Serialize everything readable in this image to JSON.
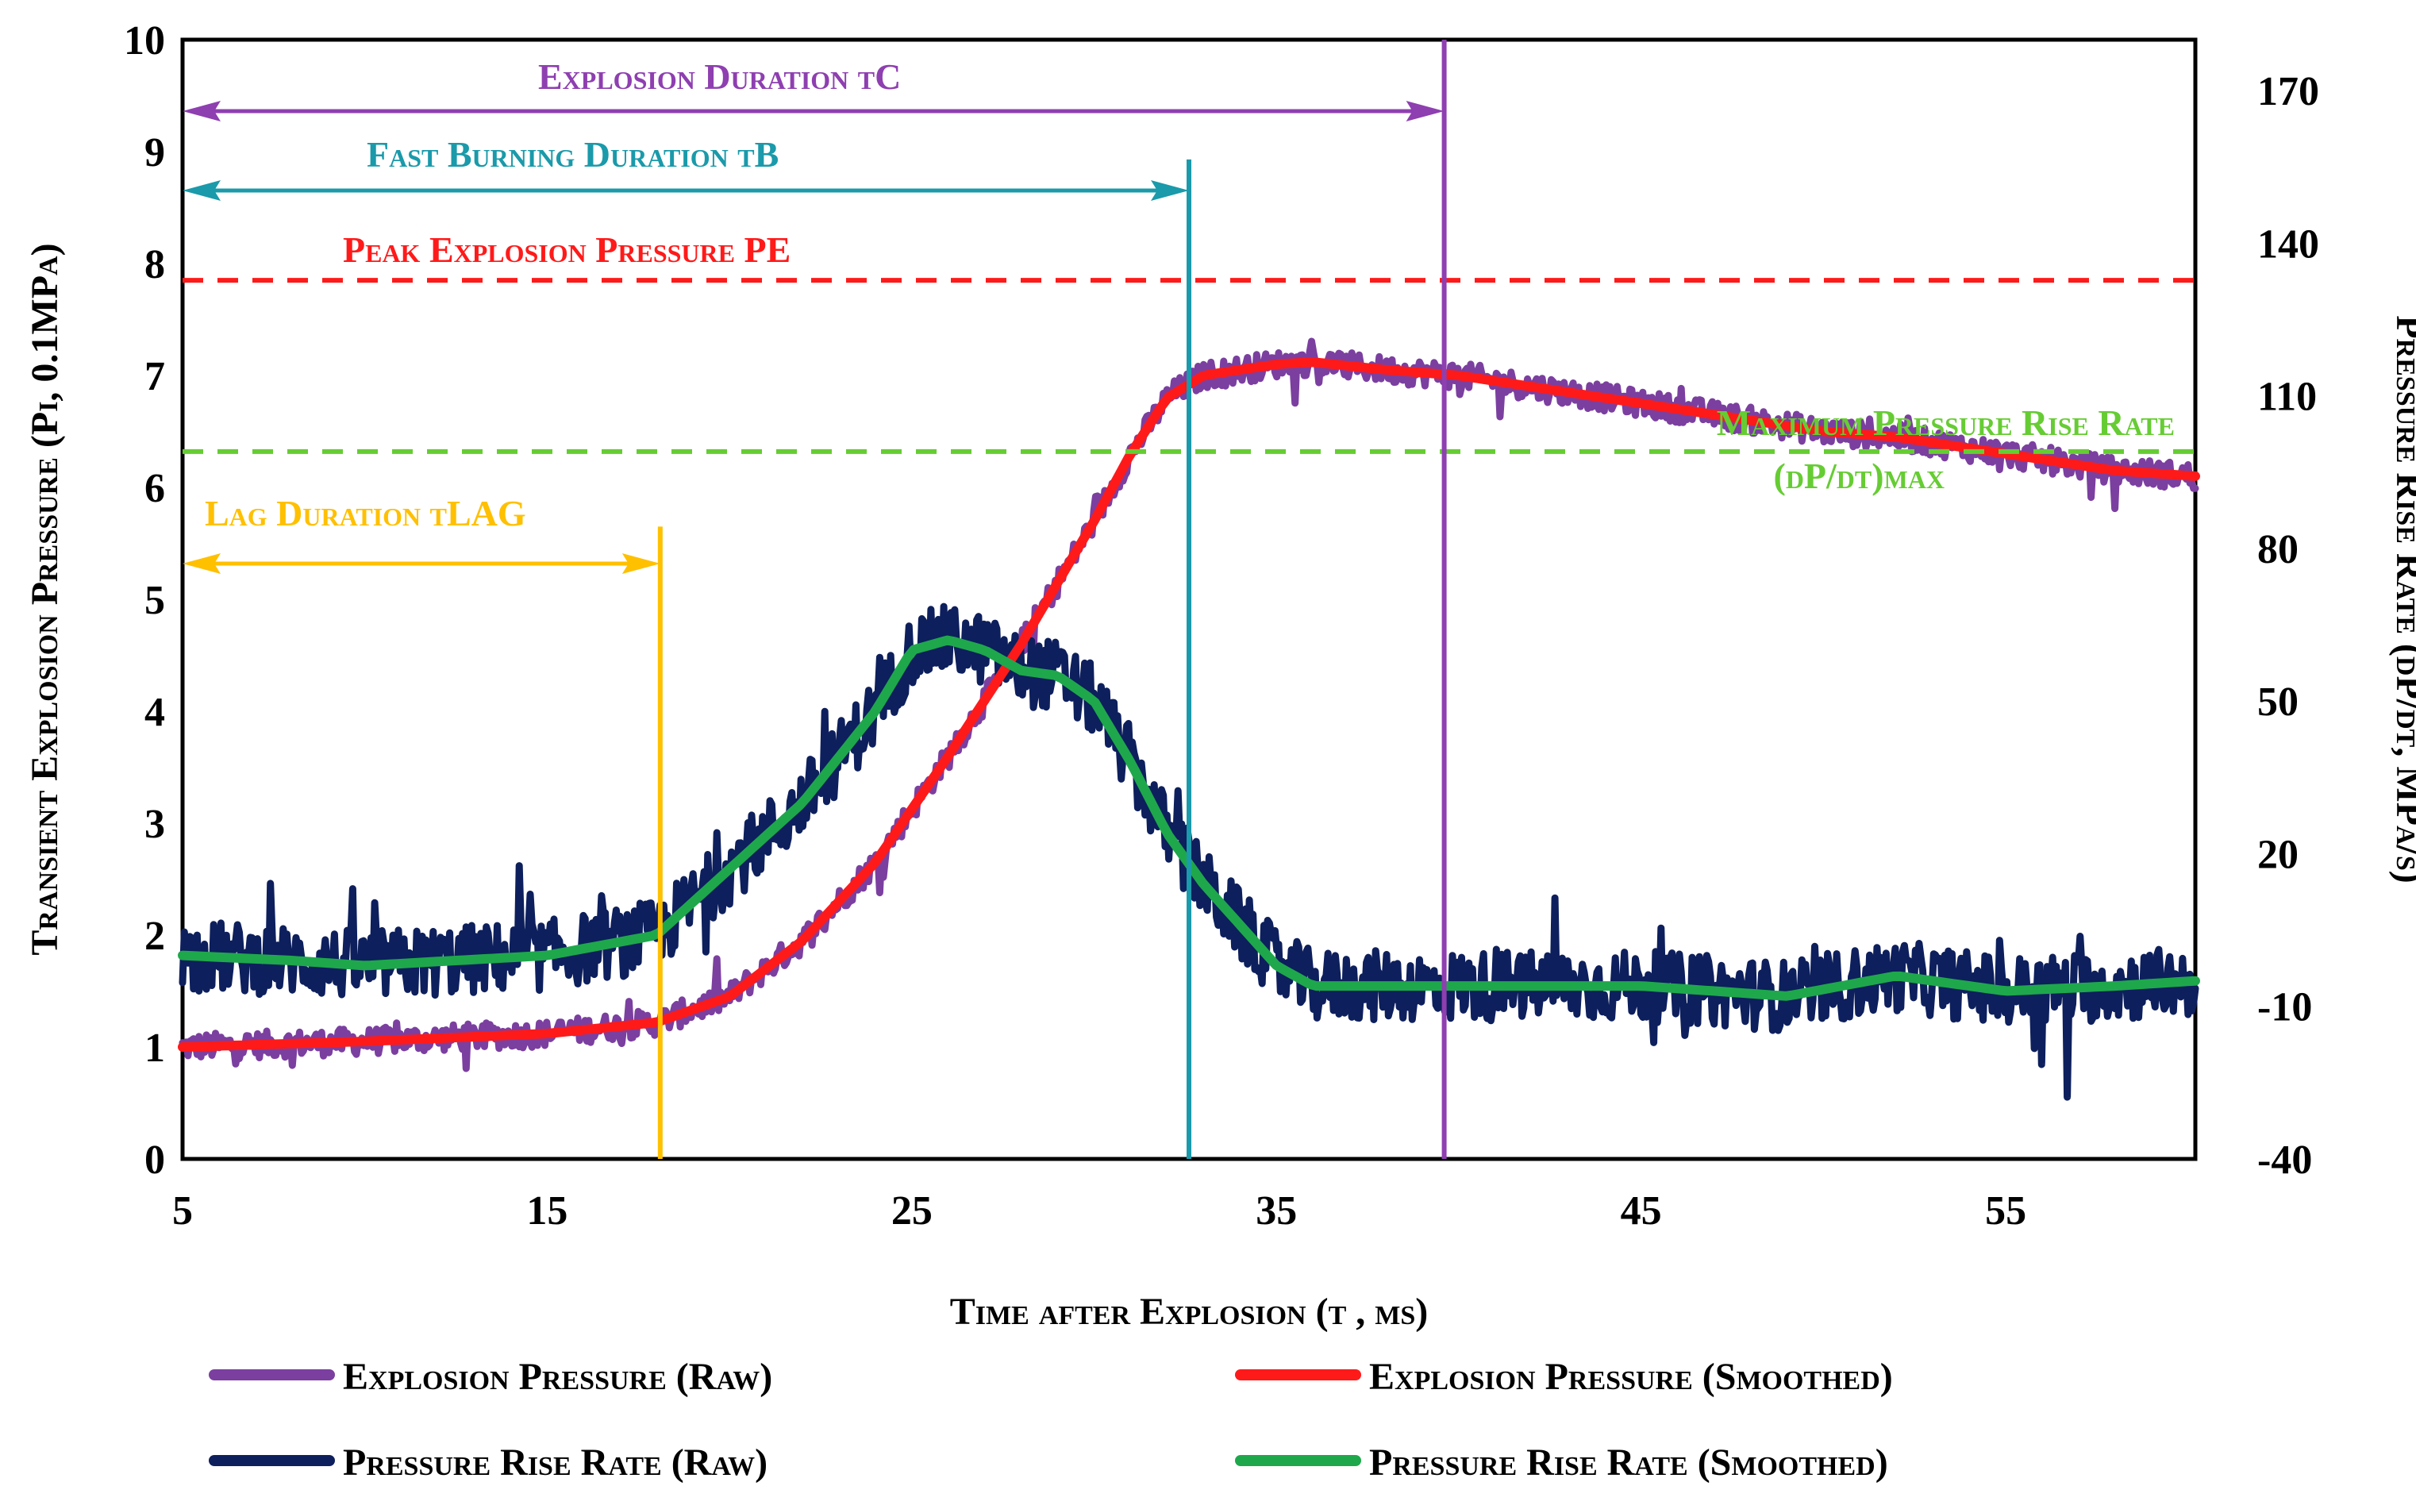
{
  "chart_data": {
    "type": "line",
    "title": "",
    "xlabel": "Time after Explosion (t , ms)",
    "ylabel": "Transient Explosion Pressure (Pi, 0.1MPa)",
    "y2label": "Pressure Rise Rate (dP/dt,  MPa/s)",
    "xlim": [
      5,
      60.2
    ],
    "ylim": [
      0,
      10
    ],
    "y2lim": [
      -40,
      180
    ],
    "x_ticks": [
      5,
      15,
      25,
      35,
      45,
      55
    ],
    "y_ticks": [
      0,
      1,
      2,
      3,
      4,
      5,
      6,
      7,
      8,
      9,
      10
    ],
    "y2_ticks": [
      -40,
      -10,
      20,
      50,
      80,
      110,
      140,
      170
    ],
    "legend_position": "bottom",
    "series": [
      {
        "name": "Explosion Pressure (Raw)",
        "axis": "left",
        "color": "#7b3fa0",
        "noisy": true,
        "noise_amp": 0.12,
        "x": [
          5,
          10,
          15,
          18,
          20,
          22,
          24,
          26,
          28,
          30,
          31,
          32,
          33,
          35,
          36,
          38,
          40,
          42,
          45,
          48,
          50,
          52,
          55,
          58,
          60.2
        ],
        "y": [
          1.0,
          1.05,
          1.12,
          1.22,
          1.45,
          1.95,
          2.65,
          3.6,
          4.6,
          5.7,
          6.3,
          6.8,
          7.0,
          7.1,
          7.12,
          7.05,
          7.0,
          6.9,
          6.75,
          6.6,
          6.5,
          6.45,
          6.3,
          6.15,
          6.1
        ]
      },
      {
        "name": "Explosion Pressure (Smoothed)",
        "axis": "left",
        "color": "#ff1a1a",
        "noisy": false,
        "x": [
          5,
          10,
          15,
          18,
          20,
          22,
          24,
          26,
          28,
          30,
          31,
          32,
          33,
          35,
          36,
          38,
          40,
          42,
          45,
          48,
          50,
          52,
          55,
          58,
          60.2
        ],
        "y": [
          1.0,
          1.05,
          1.12,
          1.22,
          1.45,
          1.95,
          2.65,
          3.6,
          4.6,
          5.7,
          6.3,
          6.8,
          7.0,
          7.1,
          7.12,
          7.05,
          7.0,
          6.9,
          6.75,
          6.6,
          6.5,
          6.45,
          6.3,
          6.15,
          6.1
        ]
      },
      {
        "name": "Pressure Rise Rate (Raw)",
        "axis": "right",
        "color": "#0d1f5c",
        "noisy": true,
        "noise_amp": 7,
        "x": [
          5,
          8,
          10,
          15,
          18,
          20,
          22,
          24,
          25,
          26,
          27,
          28,
          29,
          30,
          31,
          32,
          33,
          34,
          35,
          36,
          38,
          40,
          45,
          49,
          52,
          55,
          58,
          60.2
        ],
        "y": [
          0,
          -1,
          -2,
          0,
          4,
          17,
          30,
          48,
          60,
          62,
          60,
          56,
          55,
          50,
          38,
          24,
          14,
          6,
          -2,
          -6,
          -6,
          -6,
          -6,
          -8,
          -4,
          -7,
          -6,
          -5
        ]
      },
      {
        "name": "Pressure Rise Rate (Smoothed)",
        "axis": "right",
        "color": "#1ea84b",
        "noisy": false,
        "x": [
          5,
          8,
          10,
          15,
          18,
          20,
          22,
          24,
          25,
          26,
          27,
          28,
          29,
          30,
          31,
          32,
          33,
          34,
          35,
          36,
          38,
          40,
          45,
          49,
          52,
          55,
          58,
          60.2
        ],
        "y": [
          0,
          -1,
          -2,
          0,
          4,
          17,
          30,
          48,
          60,
          62,
          60,
          56,
          55,
          50,
          38,
          24,
          14,
          6,
          -2,
          -6,
          -6,
          -6,
          -6,
          -8,
          -4,
          -7,
          -6,
          -5
        ]
      }
    ],
    "vertical_lines": [
      {
        "name": "lag",
        "x": 18.1,
        "color": "#ffc000"
      },
      {
        "name": "fast-burn",
        "x": 32.6,
        "color": "#1a9aaa"
      },
      {
        "name": "explosion-duration",
        "x": 39.6,
        "color": "#8e3fb0"
      }
    ],
    "horizontal_lines": [
      {
        "name": "peak-pressure",
        "y": 7.85,
        "axis": "left",
        "color": "#ff1a1a"
      },
      {
        "name": "max-rise-rate",
        "y": 6.32,
        "axis": "left",
        "color": "#66cc33"
      }
    ],
    "annotations": {
      "explosion_duration": {
        "text": "Explosion Duration tC",
        "color": "#8e3fb0"
      },
      "fast_burning": {
        "text": "Fast Burning Duration tB",
        "color": "#1a9aaa"
      },
      "peak_pressure": {
        "text": "Peak Explosion Pressure PE",
        "color": "#ff1a1a"
      },
      "max_rise_rate_1": {
        "text": "Maximum Pressure Rise Rate",
        "color": "#66cc33"
      },
      "max_rise_rate_2": {
        "text": "(dP/dt)max",
        "color": "#66cc33"
      },
      "lag_duration": {
        "text": "Lag Duration tLAG",
        "color": "#ffc000"
      }
    },
    "legend": [
      {
        "label": "Explosion Pressure (Raw)",
        "color": "#7b3fa0"
      },
      {
        "label": "Explosion Pressure (Smoothed)",
        "color": "#ff1a1a"
      },
      {
        "label": "Pressure  Rise Rate (Raw)",
        "color": "#0d1f5c"
      },
      {
        "label": "Pressure  Rise Rate (Smoothed)",
        "color": "#1ea84b"
      }
    ]
  }
}
